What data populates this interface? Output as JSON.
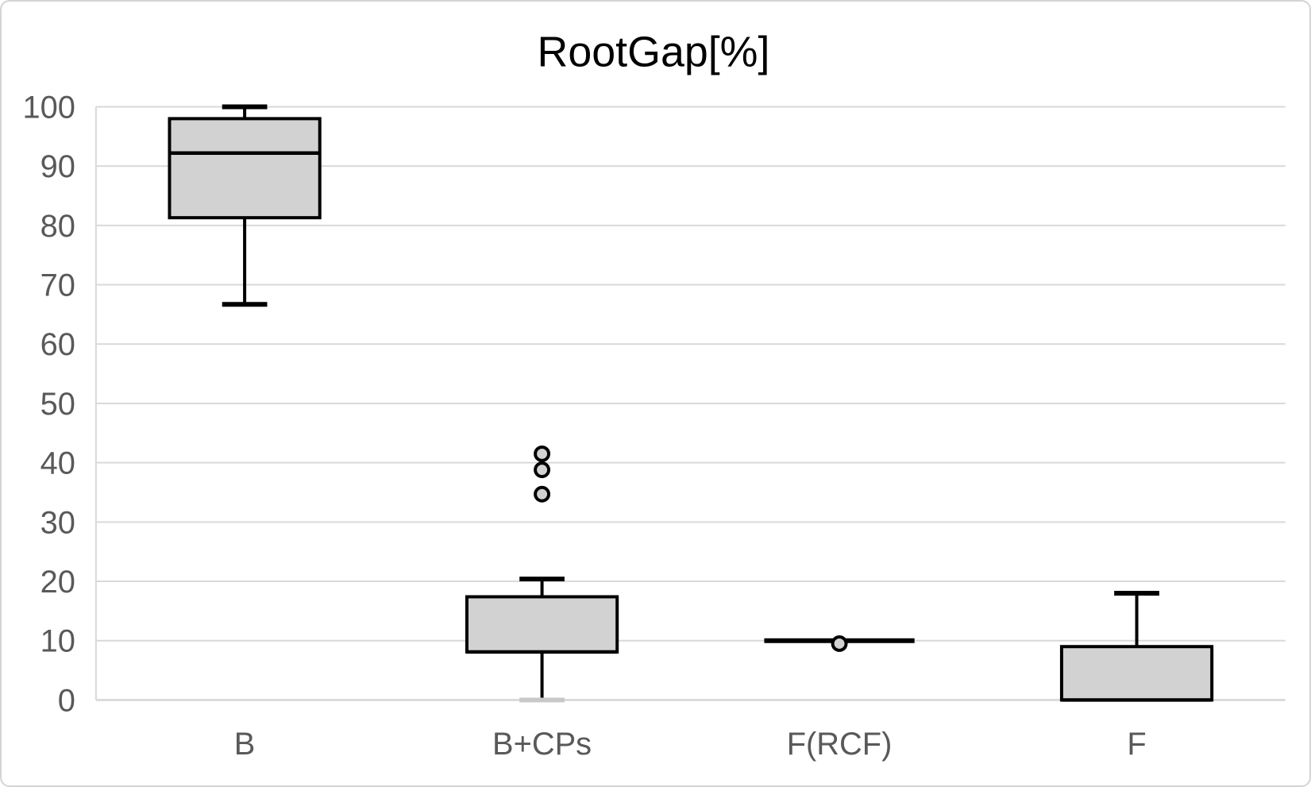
{
  "chart": {
    "title": "RootGap[%]"
  },
  "chart_data": {
    "type": "boxplot",
    "title": "RootGap[%]",
    "categories": [
      "B",
      "B+CPs",
      "F(RCF)",
      "F"
    ],
    "series": [
      {
        "name": "B",
        "min": 66.7,
        "q1": 81.3,
        "median": 92.2,
        "q3": 98.0,
        "max": 100.0,
        "outliers": []
      },
      {
        "name": "B+CPs",
        "min": 0.0,
        "q1": 8.1,
        "median": 8.1,
        "q3": 17.4,
        "max": 20.4,
        "outliers": [
          41.5,
          38.8,
          34.7
        ],
        "min_cap_color": "#c8c8c8"
      },
      {
        "name": "F(RCF)",
        "min": 10.0,
        "q1": 10.0,
        "median": 10.0,
        "q3": 10.0,
        "max": 10.0,
        "outliers": [
          9.5
        ]
      },
      {
        "name": "F",
        "min": 0.0,
        "q1": 0.0,
        "median": 0.0,
        "q3": 9.0,
        "max": 18.0,
        "outliers": []
      }
    ],
    "ylim": [
      0,
      100
    ],
    "yticks": [
      0,
      10,
      20,
      30,
      40,
      50,
      60,
      70,
      80,
      90,
      100
    ],
    "xlabel": "",
    "ylabel": "",
    "grid": true,
    "legend": "none",
    "style": {
      "box_fill": "#d2d2d2",
      "box_stroke": "#000000",
      "gridline_color": "#d9d9d9",
      "axis_line_color": "#d2d2d2",
      "label_color": "#595959",
      "title_color": "#000000",
      "chart_border_color": "#d4d4d4",
      "background": "#ffffff"
    }
  }
}
